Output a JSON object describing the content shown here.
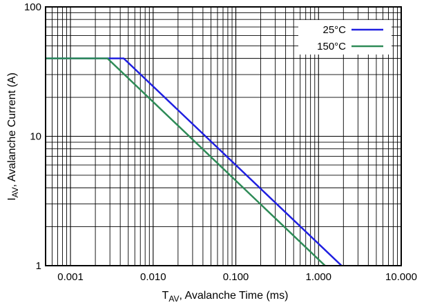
{
  "chart_data": {
    "type": "line",
    "title": "",
    "xlabel": {
      "main": "T",
      "sub": "AV",
      "rest": ", Avalanche Time (ms)"
    },
    "ylabel": {
      "main": "I",
      "sub": "AV",
      "rest": ", Avalanche Current (A)"
    },
    "x_scale": "log",
    "y_scale": "log",
    "xlim": [
      0.0005,
      10
    ],
    "ylim": [
      1,
      100
    ],
    "x_ticks": [
      {
        "value": 0.001,
        "label": "0.001"
      },
      {
        "value": 0.01,
        "label": "0.010"
      },
      {
        "value": 0.1,
        "label": "0.100"
      },
      {
        "value": 1,
        "label": "1.000"
      },
      {
        "value": 10,
        "label": "10.000"
      }
    ],
    "y_ticks": [
      {
        "value": 1,
        "label": "1"
      },
      {
        "value": 10,
        "label": "10"
      },
      {
        "value": 100,
        "label": "100"
      }
    ],
    "grid": true,
    "legend_position": "top-right",
    "series": [
      {
        "name": "25°C",
        "color": "#1f1fe0",
        "x": [
          0.0005,
          0.0044,
          1.9
        ],
        "y": [
          40,
          40,
          1
        ]
      },
      {
        "name": "150°C",
        "color": "#2e8b57",
        "x": [
          0.0005,
          0.0028,
          1.2
        ],
        "y": [
          40,
          40,
          1
        ]
      }
    ]
  }
}
